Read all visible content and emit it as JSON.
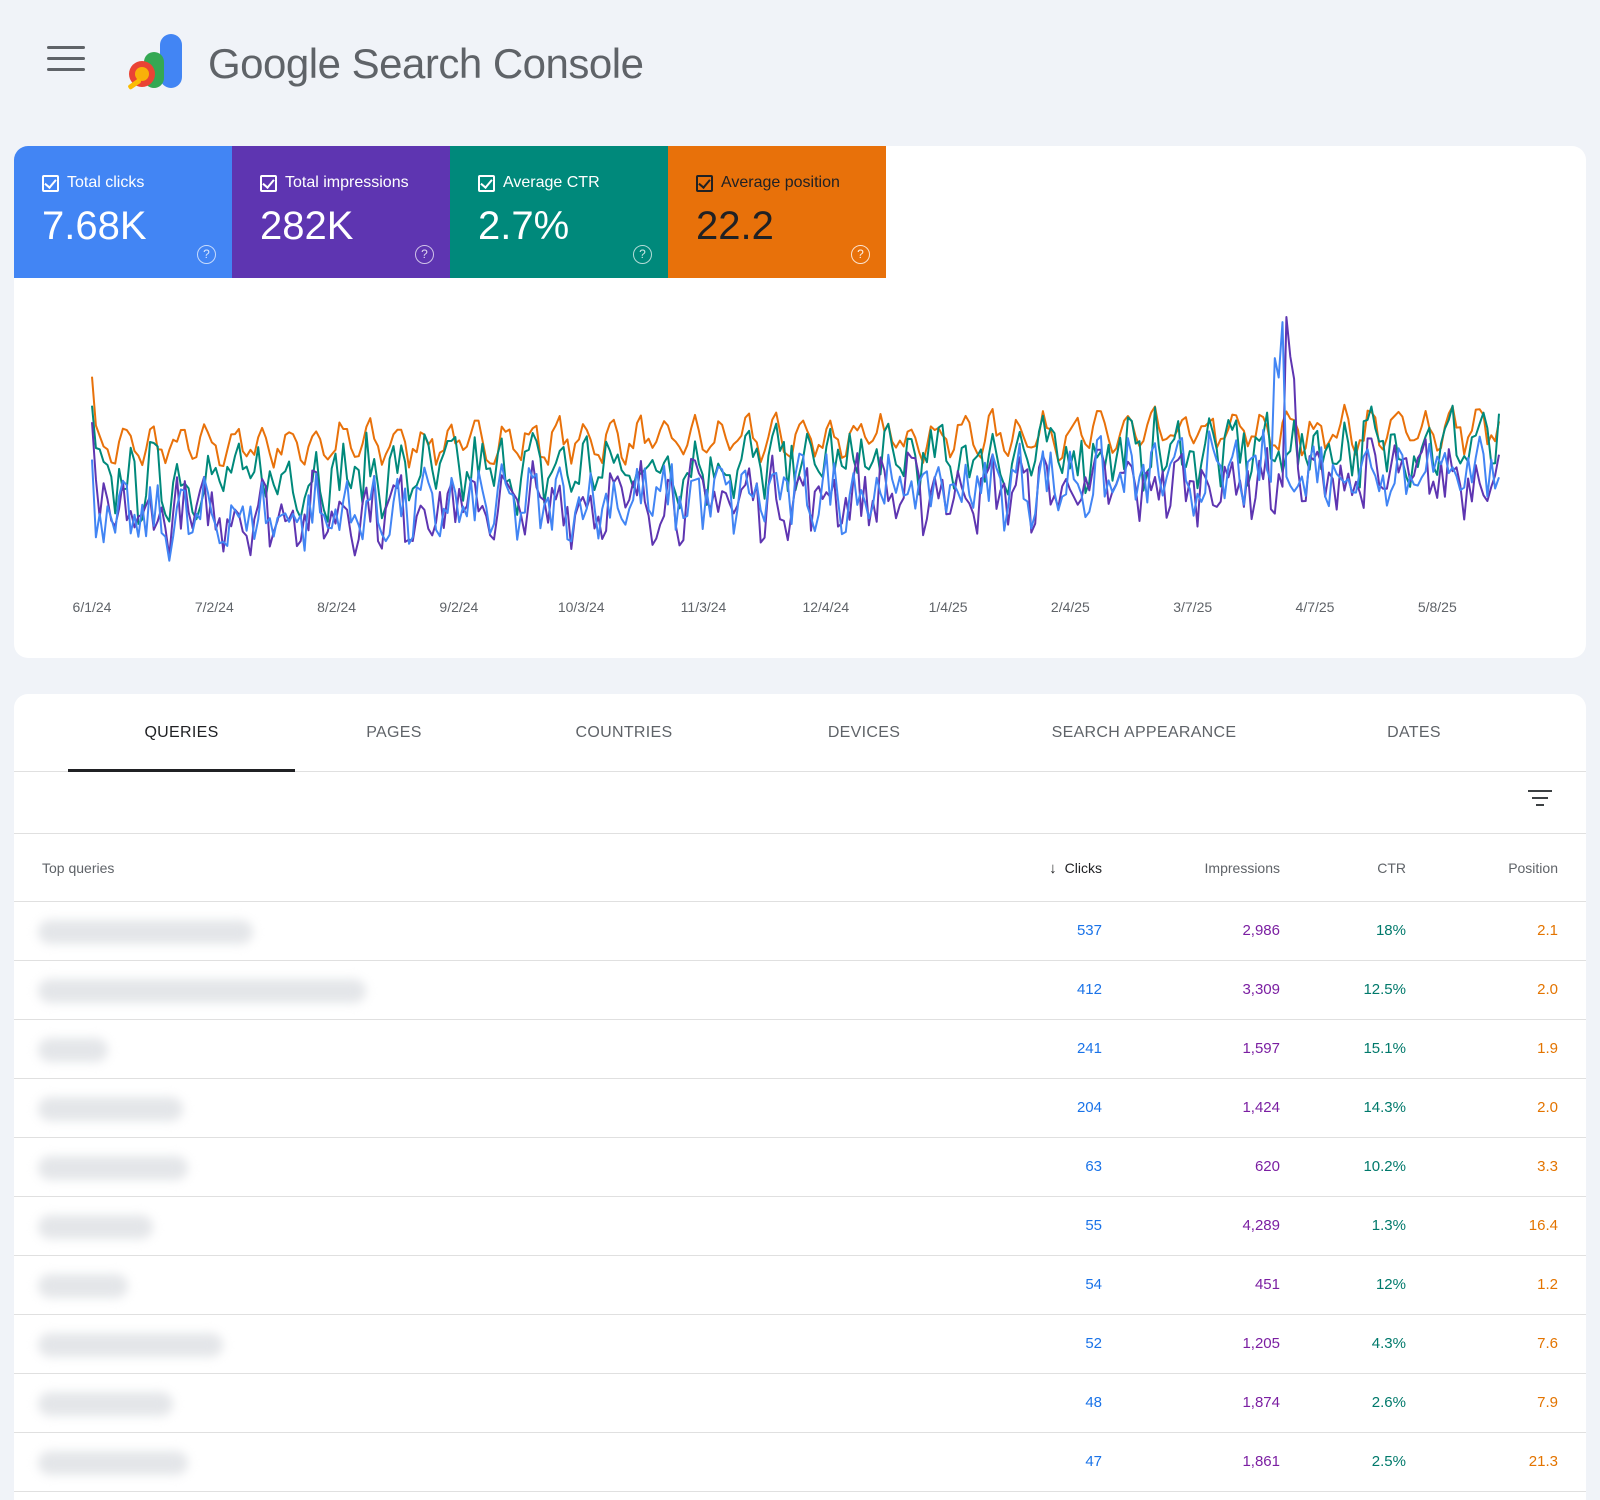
{
  "header": {
    "title": "Google Search Console",
    "menu_icon": "menu-icon",
    "logo_icon": "search-console-logo"
  },
  "metrics": [
    {
      "label": "Total clicks",
      "value": "7.68K",
      "color": "#4285f4"
    },
    {
      "label": "Total impressions",
      "value": "282K",
      "color": "#5e35b1"
    },
    {
      "label": "Average CTR",
      "value": "2.7%",
      "color": "#00897b"
    },
    {
      "label": "Average position",
      "value": "22.2",
      "color": "#e8710a"
    }
  ],
  "chart_data": {
    "type": "line",
    "x_tick_labels": [
      "6/1/24",
      "7/2/24",
      "8/2/24",
      "9/2/24",
      "10/3/24",
      "11/3/24",
      "12/4/24",
      "1/4/25",
      "2/4/25",
      "3/7/25",
      "4/7/25",
      "5/8/25"
    ],
    "x_range": [
      "6/1/24",
      "5/31/25"
    ],
    "y_axis": "hidden",
    "grid": false,
    "series": [
      {
        "metric": "Total clicks",
        "color": "#4285f4",
        "trend_start": 0.2,
        "trend_end": 0.42,
        "spike_at": "4/4/25"
      },
      {
        "metric": "Total impressions",
        "color": "#5e35b1",
        "trend_start": 0.22,
        "trend_end": 0.38,
        "spike_at": "4/7/25"
      },
      {
        "metric": "Average CTR",
        "color": "#00897b",
        "trend_start": 0.35,
        "trend_end": 0.5
      },
      {
        "metric": "Average position",
        "color": "#e8710a",
        "trend_start": 0.48,
        "trend_end": 0.55
      }
    ]
  },
  "tabs": [
    "QUERIES",
    "PAGES",
    "COUNTRIES",
    "DEVICES",
    "SEARCH APPEARANCE",
    "DATES"
  ],
  "table": {
    "columns": {
      "query": "Top queries",
      "clicks": "Clicks",
      "impressions": "Impressions",
      "ctr": "CTR",
      "position": "Position"
    },
    "sort_icon": "arrow-down-icon",
    "filter_icon": "filter-icon",
    "rows": [
      {
        "clicks": "537",
        "impressions": "2,986",
        "ctr": "18%",
        "position": "2.1"
      },
      {
        "clicks": "412",
        "impressions": "3,309",
        "ctr": "12.5%",
        "position": "2.0"
      },
      {
        "clicks": "241",
        "impressions": "1,597",
        "ctr": "15.1%",
        "position": "1.9"
      },
      {
        "clicks": "204",
        "impressions": "1,424",
        "ctr": "14.3%",
        "position": "2.0"
      },
      {
        "clicks": "63",
        "impressions": "620",
        "ctr": "10.2%",
        "position": "3.3"
      },
      {
        "clicks": "55",
        "impressions": "4,289",
        "ctr": "1.3%",
        "position": "16.4"
      },
      {
        "clicks": "54",
        "impressions": "451",
        "ctr": "12%",
        "position": "1.2"
      },
      {
        "clicks": "52",
        "impressions": "1,205",
        "ctr": "4.3%",
        "position": "7.6"
      },
      {
        "clicks": "48",
        "impressions": "1,874",
        "ctr": "2.6%",
        "position": "7.9"
      },
      {
        "clicks": "47",
        "impressions": "1,861",
        "ctr": "2.5%",
        "position": "21.3"
      }
    ]
  }
}
